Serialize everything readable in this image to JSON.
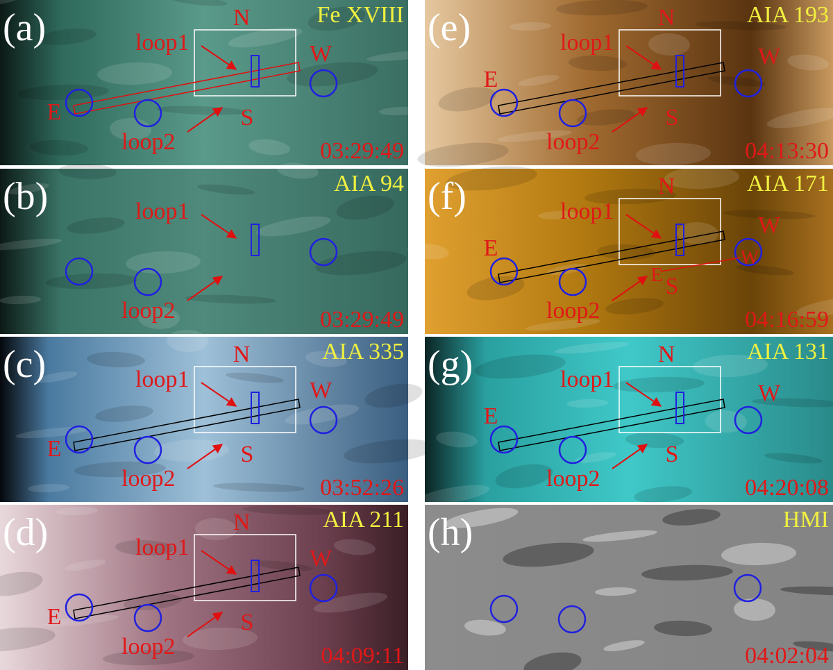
{
  "panels": [
    {
      "label": "(a)",
      "channel": "Fe XVIII",
      "time": "03:29:49",
      "north": "N",
      "south": "S",
      "east": "E",
      "west": "W",
      "loop1": "loop1",
      "loop2": "loop2"
    },
    {
      "label": "(b)",
      "channel": "AIA 94",
      "time": "03:29:49",
      "loop1": "loop1",
      "loop2": "loop2"
    },
    {
      "label": "(c)",
      "channel": "AIA 335",
      "time": "03:52:26",
      "north": "N",
      "south": "S",
      "east": "E",
      "west": "W",
      "loop1": "loop1",
      "loop2": "loop2"
    },
    {
      "label": "(d)",
      "channel": "AIA 211",
      "time": "04:09:11",
      "north": "N",
      "south": "S",
      "east": "E",
      "west": "W",
      "loop1": "loop1",
      "loop2": "loop2"
    },
    {
      "label": "(e)",
      "channel": "AIA 193",
      "time": "04:13:30",
      "north": "N",
      "south": "S",
      "east": "E",
      "west": "W",
      "loop1": "loop1",
      "loop2": "loop2"
    },
    {
      "label": "(f)",
      "channel": "AIA 171",
      "time": "04:16:59",
      "north": "N",
      "south": "S",
      "east": "E",
      "west": "W",
      "loop1": "loop1",
      "loop2": "loop2",
      "inner_east": "E",
      "inner_west": "W"
    },
    {
      "label": "(g)",
      "channel": "AIA 131",
      "time": "04:20:08",
      "north": "N",
      "south": "S",
      "east": "E",
      "west": "W",
      "loop1": "loop1",
      "loop2": "loop2"
    },
    {
      "label": "(h)",
      "channel": "HMI",
      "time": "04:02:04"
    }
  ]
}
